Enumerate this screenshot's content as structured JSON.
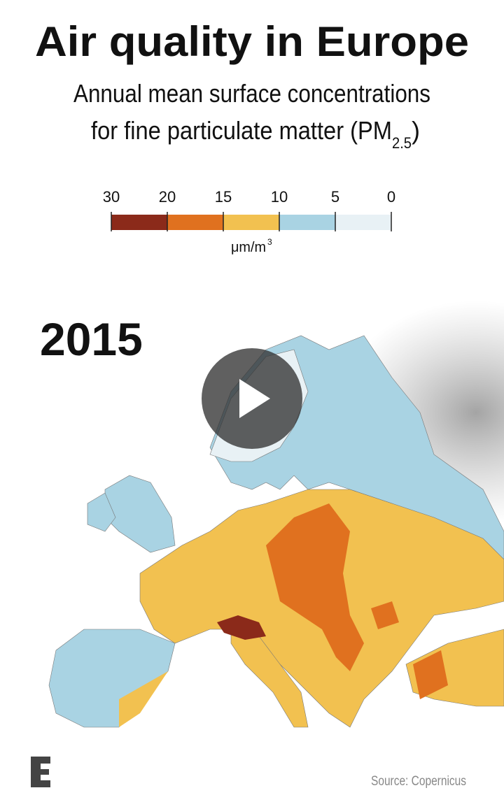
{
  "header": {
    "title": "Air quality in Europe",
    "subtitle_line1": "Annual mean surface concentrations",
    "subtitle_line2": {
      "text": "for fine particulate matter (PM",
      "subscript": "2.5",
      "close": ")"
    }
  },
  "legend": {
    "ticks": [
      30,
      20,
      15,
      10,
      5,
      0
    ],
    "colors": [
      "#8b2a1a",
      "#e0711f",
      "#f2c150",
      "#a9d3e3",
      "#e8f1f5"
    ],
    "unit": {
      "text": "μm/m",
      "superscript": "3"
    }
  },
  "map": {
    "year": "2015"
  },
  "footer": {
    "source": "Source: Copernicus"
  }
}
